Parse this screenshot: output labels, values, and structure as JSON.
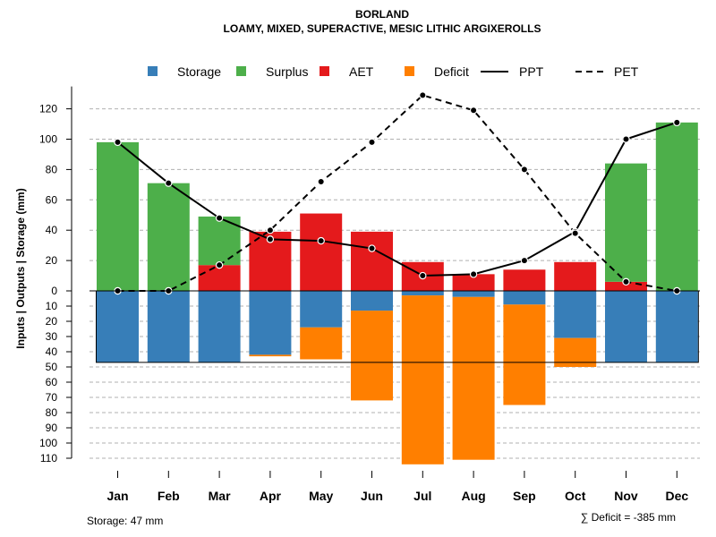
{
  "chart_data": {
    "type": "bar",
    "title": "BORLAND",
    "subtitle": "LOAMY, MIXED, SUPERACTIVE, MESIC LITHIC ARGIXEROLLS",
    "ylabel": "Inputs | Outputs | Storage    (mm)",
    "categories": [
      "Jan",
      "Feb",
      "Mar",
      "Apr",
      "May",
      "Jun",
      "Jul",
      "Aug",
      "Sep",
      "Oct",
      "Nov",
      "Dec"
    ],
    "ylim_upper": [
      0,
      130
    ],
    "ylim_lower": [
      0,
      115
    ],
    "upper_ticks": [
      0,
      20,
      40,
      60,
      80,
      100,
      120
    ],
    "upper_tick_labels": [
      "0",
      "20",
      "40",
      "60",
      "80",
      "100",
      "120"
    ],
    "lower_ticks": [
      10,
      20,
      30,
      40,
      50,
      60,
      70,
      80,
      90,
      100,
      110
    ],
    "lower_tick_labels": [
      "10",
      "20",
      "30",
      "40",
      "50",
      "60",
      "70",
      "80",
      "90",
      "100",
      "110"
    ],
    "legend": [
      {
        "label": "Storage",
        "kind": "box",
        "color": "#377eb8"
      },
      {
        "label": "Surplus",
        "kind": "box",
        "color": "#4daf4a"
      },
      {
        "label": "AET",
        "kind": "box",
        "color": "#e41a1c"
      },
      {
        "label": "Deficit",
        "kind": "box",
        "color": "#ff7f00"
      },
      {
        "label": "PPT",
        "kind": "solid",
        "color": "#000000"
      },
      {
        "label": "PET",
        "kind": "dashed",
        "color": "#000000"
      }
    ],
    "series_upper": [
      {
        "name": "AET",
        "color": "#e41a1c",
        "values": [
          0,
          0,
          17,
          39,
          51,
          39,
          19,
          11,
          14,
          19,
          6,
          0
        ]
      },
      {
        "name": "Surplus",
        "color": "#4daf4a",
        "values": [
          98,
          71,
          32,
          0,
          0,
          0,
          0,
          0,
          0,
          0,
          78,
          111
        ]
      }
    ],
    "series_lower": [
      {
        "name": "Storage",
        "color": "#377eb8",
        "values": [
          47,
          47,
          47,
          42,
          24,
          13,
          3,
          4,
          9,
          31,
          47,
          47
        ]
      },
      {
        "name": "Deficit",
        "color": "#ff7f00",
        "values": [
          0,
          0,
          0,
          1,
          21,
          59,
          111,
          107,
          66,
          19,
          0,
          0
        ]
      }
    ],
    "lines": [
      {
        "name": "PPT",
        "style": "solid",
        "values": [
          98,
          71,
          48,
          34,
          33,
          28,
          10,
          11,
          20,
          39,
          100,
          111
        ]
      },
      {
        "name": "PET",
        "style": "dashed",
        "values": [
          0,
          0,
          17,
          40,
          72,
          98,
          129,
          119,
          80,
          38,
          6,
          0
        ]
      }
    ],
    "storage_capacity": 47,
    "storage_note": "Storage: 47 mm",
    "deficit_note": "∑ Deficit = -385 mm"
  }
}
